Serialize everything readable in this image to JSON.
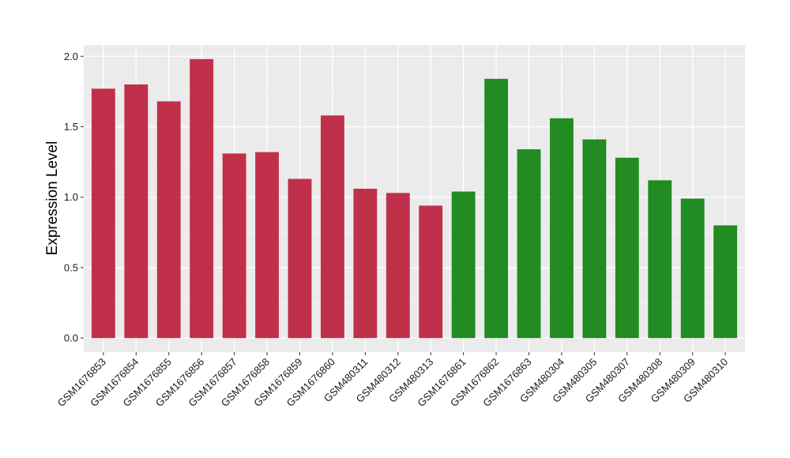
{
  "chart_data": {
    "type": "bar",
    "title": "",
    "xlabel": "",
    "ylabel": "Expression Level",
    "ylim": [
      -0.1,
      2.08
    ],
    "yticks": [
      0.0,
      0.5,
      1.0,
      1.5,
      2.0
    ],
    "ytick_labels": [
      "0.0",
      "0.5",
      "1.0",
      "1.5",
      "2.0"
    ],
    "grid": true,
    "legend": "none",
    "categories": [
      "GSM1676853",
      "GSM1676854",
      "GSM1676855",
      "GSM1676856",
      "GSM1676857",
      "GSM1676858",
      "GSM1676859",
      "GSM1676860",
      "GSM480311",
      "GSM480312",
      "GSM480313",
      "GSM1676861",
      "GSM1676862",
      "GSM1676863",
      "GSM480304",
      "GSM480305",
      "GSM480307",
      "GSM480308",
      "GSM480309",
      "GSM480310"
    ],
    "values": [
      1.77,
      1.8,
      1.68,
      1.98,
      1.31,
      1.32,
      1.13,
      1.58,
      1.06,
      1.03,
      0.94,
      1.04,
      1.84,
      1.34,
      1.56,
      1.41,
      1.28,
      1.12,
      0.99,
      0.8
    ],
    "groups": [
      "A",
      "A",
      "A",
      "A",
      "A",
      "A",
      "A",
      "A",
      "A",
      "A",
      "A",
      "B",
      "B",
      "B",
      "B",
      "B",
      "B",
      "B",
      "B",
      "B"
    ],
    "colors": {
      "A": "#c0304a",
      "B": "#228b22"
    }
  },
  "style": {
    "panel_bg": "#ebebeb",
    "grid_major": "#ffffff",
    "grid_minor": "#f5f5f5",
    "tick_color": "#333333"
  }
}
